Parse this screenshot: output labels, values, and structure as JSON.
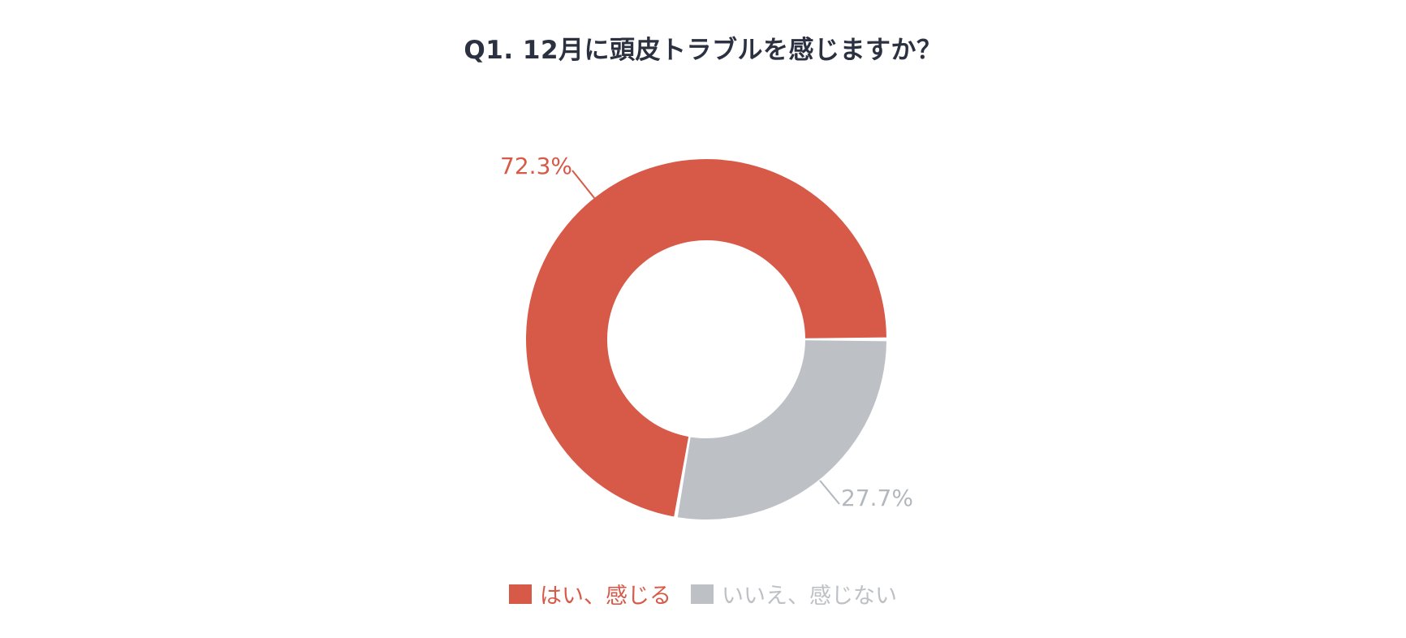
{
  "colors": {
    "yes": "#d75a48",
    "no": "#bdc1c5",
    "title": "#2b3140"
  },
  "chart_data": {
    "type": "pie",
    "donut": true,
    "title": "Q1. 12月に頭皮トラブルを感じますか？",
    "legend_position": "bottom-center",
    "slices": [
      {
        "label": "はい、感じる",
        "value": 72.3,
        "display": "72.3%",
        "color": "#d75a48"
      },
      {
        "label": "いいえ、感じない",
        "value": 27.7,
        "display": "27.7%",
        "color": "#bdc1c5"
      }
    ]
  }
}
